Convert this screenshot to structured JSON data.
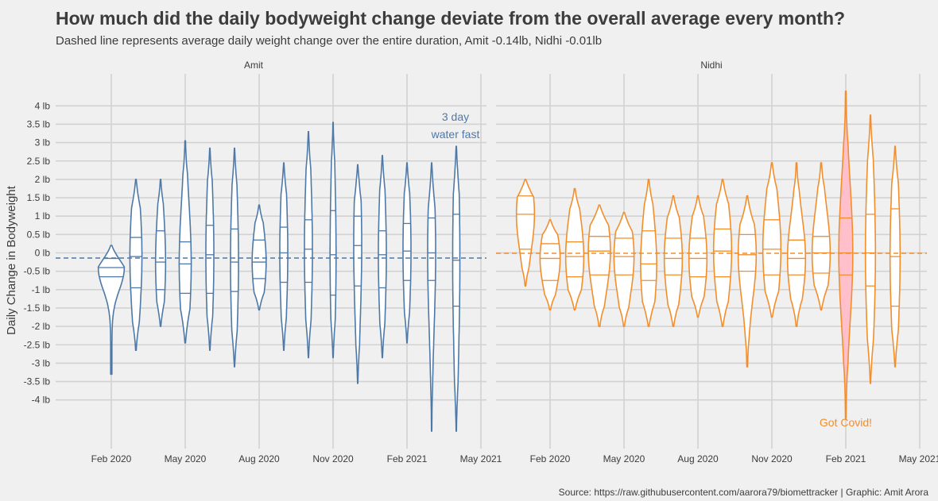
{
  "chart_data": {
    "type": "violin",
    "title": "How much did the daily bodyweight change deviate from the overall average every month?",
    "subtitle": "Dashed line represents average daily weight change over the entire duration, Amit -0.14lb, Nidhi -0.01lb",
    "caption": "Source: https://raw.githubusercontent.com/aarora79/biomettracker | Graphic: Amit Arora",
    "ylabel": "Daily Change in Bodyweight",
    "xlabel": "",
    "ylim": [
      -5,
      4.5
    ],
    "y_ticks": [
      {
        "v": 4,
        "label": "4 lb"
      },
      {
        "v": 3.5,
        "label": "3.5 lb"
      },
      {
        "v": 3,
        "label": "3 lb"
      },
      {
        "v": 2.5,
        "label": "2.5 lb"
      },
      {
        "v": 2,
        "label": "2 lb"
      },
      {
        "v": 1.5,
        "label": "1.5 lb"
      },
      {
        "v": 1,
        "label": "1 lb"
      },
      {
        "v": 0.5,
        "label": "0.5 lb"
      },
      {
        "v": 0,
        "label": "0 lb"
      },
      {
        "v": -0.5,
        "label": "-0.5 lb"
      },
      {
        "v": -1,
        "label": "-1 lb"
      },
      {
        "v": -1.5,
        "label": "-1.5 lb"
      },
      {
        "v": -2,
        "label": "-2 lb"
      },
      {
        "v": -2.5,
        "label": "-2.5 lb"
      },
      {
        "v": -3,
        "label": "-3 lb"
      },
      {
        "v": -3.5,
        "label": "-3.5 lb"
      },
      {
        "v": -4,
        "label": "-4 lb"
      }
    ],
    "x_ticks": [
      {
        "date": "2020-02",
        "label": "Feb 2020"
      },
      {
        "date": "2020-05",
        "label": "May 2020"
      },
      {
        "date": "2020-08",
        "label": "Aug 2020"
      },
      {
        "date": "2020-11",
        "label": "Nov 2020"
      },
      {
        "date": "2021-02",
        "label": "Feb 2021"
      },
      {
        "date": "2021-05",
        "label": "May 2021"
      }
    ],
    "grid": true,
    "panels": [
      {
        "name": "Amit",
        "color": "#4e79a7",
        "mean": -0.14,
        "annotation": {
          "lines": [
            "3 day",
            "water fast"
          ],
          "month": "2021-03"
        },
        "months": [
          {
            "month": "2020-02",
            "min": -3.3,
            "max": 0.2,
            "q1": -0.65,
            "median": -0.4,
            "q3": -0.15,
            "w": 0.65
          },
          {
            "month": "2020-03",
            "min": -2.65,
            "max": 2.0,
            "q1": -0.95,
            "median": -0.1,
            "q3": 0.42,
            "w": 0.3
          },
          {
            "month": "2020-04",
            "min": -2.0,
            "max": 2.0,
            "q1": -1.0,
            "median": -0.25,
            "q3": 0.6,
            "w": 0.25
          },
          {
            "month": "2020-05",
            "min": -2.45,
            "max": 3.05,
            "q1": -1.1,
            "median": -0.3,
            "q3": 0.3,
            "w": 0.3
          },
          {
            "month": "2020-06",
            "min": -2.65,
            "max": 2.85,
            "q1": -1.1,
            "median": -0.05,
            "q3": 0.75,
            "w": 0.2
          },
          {
            "month": "2020-07",
            "min": -3.1,
            "max": 2.85,
            "q1": -1.05,
            "median": -0.25,
            "q3": 0.65,
            "w": 0.2
          },
          {
            "month": "2020-08",
            "min": -1.55,
            "max": 1.3,
            "q1": -0.7,
            "median": -0.25,
            "q3": 0.35,
            "w": 0.35
          },
          {
            "month": "2020-09",
            "min": -2.65,
            "max": 2.45,
            "q1": -0.8,
            "median": 0.0,
            "q3": 0.7,
            "w": 0.2
          },
          {
            "month": "2020-10",
            "min": -2.85,
            "max": 3.3,
            "q1": -0.8,
            "median": 0.1,
            "q3": 0.9,
            "w": 0.2
          },
          {
            "month": "2020-11",
            "min": -2.85,
            "max": 3.55,
            "q1": -1.15,
            "median": -0.05,
            "q3": 1.15,
            "w": 0.15
          },
          {
            "month": "2020-12",
            "min": -3.55,
            "max": 2.4,
            "q1": -0.9,
            "median": 0.2,
            "q3": 1.0,
            "w": 0.2
          },
          {
            "month": "2021-01",
            "min": -2.85,
            "max": 2.65,
            "q1": -0.95,
            "median": -0.05,
            "q3": 0.6,
            "w": 0.2
          },
          {
            "month": "2021-02",
            "min": -2.45,
            "max": 2.45,
            "q1": -0.75,
            "median": 0.05,
            "q3": 0.8,
            "w": 0.2
          },
          {
            "month": "2021-03",
            "min": -4.85,
            "max": 2.45,
            "q1": -0.75,
            "median": 0.0,
            "q3": 0.95,
            "w": 0.2
          },
          {
            "month": "2021-04",
            "min": -4.85,
            "max": 2.9,
            "q1": -1.45,
            "median": -0.2,
            "q3": 1.05,
            "w": 0.18
          }
        ]
      },
      {
        "name": "Nidhi",
        "color": "#f28e2b",
        "mean": -0.01,
        "highlight_fill": "#ffc0cb",
        "annotation": {
          "lines": [
            "Got Covid!"
          ],
          "month": "2021-02"
        },
        "months": [
          {
            "month": "2020-01",
            "min": -0.9,
            "max": 2.0,
            "q1": 0.1,
            "median": 1.05,
            "q3": 1.55,
            "w": 0.45
          },
          {
            "month": "2020-02",
            "min": -1.55,
            "max": 0.9,
            "q1": -0.75,
            "median": -0.15,
            "q3": 0.25,
            "w": 0.5
          },
          {
            "month": "2020-03",
            "min": -1.55,
            "max": 1.75,
            "q1": -0.65,
            "median": -0.1,
            "q3": 0.3,
            "w": 0.45
          },
          {
            "month": "2020-04",
            "min": -2.0,
            "max": 1.3,
            "q1": -0.6,
            "median": 0.05,
            "q3": 0.45,
            "w": 0.55
          },
          {
            "month": "2020-05",
            "min": -2.0,
            "max": 1.1,
            "q1": -0.6,
            "median": -0.1,
            "q3": 0.4,
            "w": 0.5
          },
          {
            "month": "2020-06",
            "min": -2.0,
            "max": 2.0,
            "q1": -0.75,
            "median": -0.3,
            "q3": 0.6,
            "w": 0.4
          },
          {
            "month": "2020-07",
            "min": -2.0,
            "max": 1.55,
            "q1": -0.6,
            "median": -0.15,
            "q3": 0.4,
            "w": 0.45
          },
          {
            "month": "2020-08",
            "min": -1.75,
            "max": 1.55,
            "q1": -0.65,
            "median": -0.15,
            "q3": 0.4,
            "w": 0.45
          },
          {
            "month": "2020-09",
            "min": -2.0,
            "max": 2.0,
            "q1": -0.65,
            "median": 0.05,
            "q3": 0.65,
            "w": 0.45
          },
          {
            "month": "2020-10",
            "min": -3.1,
            "max": 1.55,
            "q1": -0.5,
            "median": -0.05,
            "q3": 0.5,
            "w": 0.45
          },
          {
            "month": "2020-11",
            "min": -1.75,
            "max": 2.45,
            "q1": -0.6,
            "median": 0.1,
            "q3": 0.9,
            "w": 0.45
          },
          {
            "month": "2020-12",
            "min": -2.0,
            "max": 2.45,
            "q1": -0.6,
            "median": -0.15,
            "q3": 0.35,
            "w": 0.45
          },
          {
            "month": "2021-01",
            "min": -1.55,
            "max": 2.45,
            "q1": -0.55,
            "median": 0.0,
            "q3": 0.45,
            "w": 0.45
          },
          {
            "month": "2021-02",
            "min": -4.5,
            "max": 4.4,
            "q1": -0.6,
            "median": 0.0,
            "q3": 0.95,
            "w": 0.35,
            "highlight": true
          },
          {
            "month": "2021-03",
            "min": -3.55,
            "max": 3.75,
            "q1": -0.9,
            "median": 0.0,
            "q3": 1.05,
            "w": 0.25
          },
          {
            "month": "2021-04",
            "min": -3.1,
            "max": 2.9,
            "q1": -1.45,
            "median": -0.1,
            "q3": 1.2,
            "w": 0.25
          }
        ]
      }
    ]
  }
}
